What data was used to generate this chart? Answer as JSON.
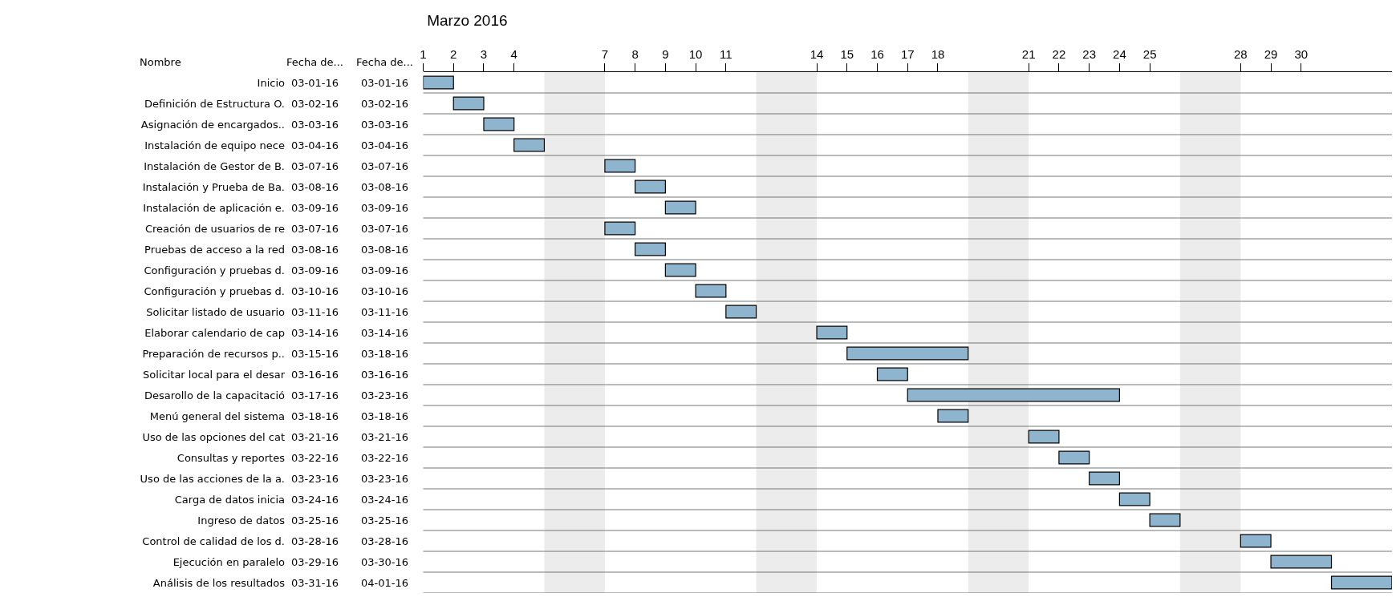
{
  "chart_data": {
    "type": "bar",
    "orientation": "horizontal",
    "title": "Marzo 2016",
    "ylabel": "Nombre",
    "categories": [
      "Inicio",
      "Definición de Estructura O.",
      "Asignación de encargados..",
      "Instalación de equipo nece",
      "Instalación de Gestor de B.",
      "Instalación y Prueba de Ba.",
      "Instalación de aplicación e.",
      "Creación de usuarios de re",
      "Pruebas de acceso a la red",
      "Configuración y pruebas d.",
      "Configuración y pruebas d.",
      "Solicitar listado de usuario",
      "Elaborar calendario de cap",
      "Preparación de recursos p..",
      "Solicitar local para el desar",
      "Desarollo de la capacitació",
      "Menú general del sistema",
      "Uso de las opciones del cat",
      "Consultas y reportes",
      "Uso de las acciones de la a.",
      "Carga de datos inicia",
      "Ingreso de datos",
      "Control de calidad de los d.",
      "Ejecución en paralelo",
      "Análisis de los resultados"
    ],
    "base": [
      1,
      2,
      3,
      4,
      7,
      8,
      9,
      7,
      8,
      9,
      10,
      11,
      14,
      15,
      16,
      17,
      18,
      21,
      22,
      23,
      24,
      25,
      28,
      29,
      31
    ],
    "values": [
      1,
      1,
      1,
      1,
      1,
      1,
      1,
      1,
      1,
      1,
      1,
      1,
      1,
      4,
      1,
      7,
      1,
      1,
      1,
      1,
      1,
      1,
      1,
      2,
      2
    ],
    "color": "#8fb4cd",
    "xlim": [
      1,
      33
    ],
    "xticks": [
      1,
      2,
      3,
      4,
      7,
      8,
      9,
      10,
      11,
      14,
      15,
      16,
      17,
      18,
      21,
      22,
      23,
      24,
      25,
      28,
      29,
      30
    ],
    "bands": [
      {
        "axis": "x",
        "from": 5,
        "to": 7,
        "color": "#ececec"
      },
      {
        "axis": "x",
        "from": 12,
        "to": 14,
        "color": "#ececec"
      },
      {
        "axis": "x",
        "from": 19,
        "to": 21,
        "color": "#ececec"
      },
      {
        "axis": "x",
        "from": 26,
        "to": 28,
        "color": "#ececec"
      }
    ],
    "grid": "y",
    "annotations": [
      "Fecha de...",
      "Fecha de...",
      "03-01-16",
      "03-02-16",
      "03-03-16",
      "03-04-16",
      "03-07-16",
      "03-08-16",
      "03-09-16",
      "03-07-16",
      "03-08-16",
      "03-09-16",
      "03-10-16",
      "03-11-16",
      "03-14-16",
      "03-15-16",
      "03-16-16",
      "03-17-16",
      "03-18-16",
      "03-21-16",
      "03-22-16",
      "03-23-16",
      "03-24-16",
      "03-25-16",
      "03-28-16",
      "03-29-16",
      "03-31-16",
      "03-01-16",
      "03-02-16",
      "03-03-16",
      "03-04-16",
      "03-07-16",
      "03-08-16",
      "03-09-16",
      "03-07-16",
      "03-08-16",
      "03-09-16",
      "03-10-16",
      "03-11-16",
      "03-14-16",
      "03-18-16",
      "03-16-16",
      "03-23-16",
      "03-18-16",
      "03-21-16",
      "03-22-16",
      "03-23-16",
      "03-24-16",
      "03-25-16",
      "03-28-16",
      "03-30-16",
      "04-01-16"
    ]
  }
}
